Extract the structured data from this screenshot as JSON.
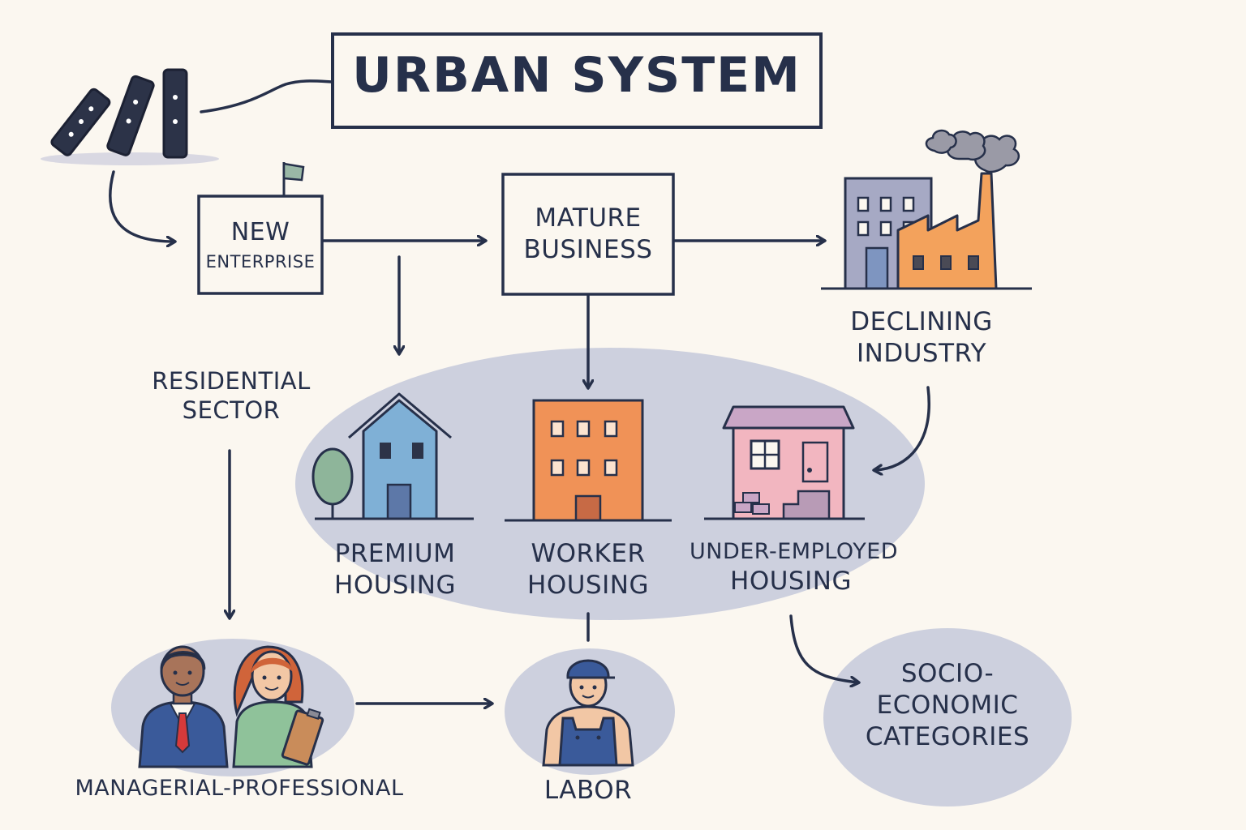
{
  "title": "URBAN SYSTEM",
  "nodes": {
    "new_enterprise": [
      "NEW",
      "ENTERPRISE"
    ],
    "mature_business": [
      "MATURE",
      "BUSINESS"
    ],
    "declining_industry": [
      "DECLINING",
      "INDUSTRY"
    ],
    "residential_sector": [
      "RESIDENTIAL",
      "SECTOR"
    ],
    "premium_housing": [
      "PREMIUM",
      "HOUSING"
    ],
    "worker_housing": [
      "WORKER",
      "HOUSING"
    ],
    "underemployed_housing": [
      "UNDER-EMPLOYED",
      "HOUSING"
    ],
    "managerial_professional": "MANAGERIAL-PROFESSIONAL",
    "labor": "LABOR",
    "socio_economic": [
      "SOCIO-",
      "ECONOMIC",
      "CATEGORIES"
    ]
  },
  "colors": {
    "background": "#fbf7f0",
    "ink": "#26304a",
    "bubble": "#cdd0de",
    "premium_house": "#7fb0d6",
    "worker_block": "#f09257",
    "underemployed_house": "#f2b6c0",
    "factory": "#f3a25c",
    "office": "#a6a9c4"
  },
  "icons": [
    "domino-icon",
    "flag-icon",
    "tree-icon",
    "house-icon",
    "apartment-icon",
    "factory-icon",
    "smoke-icon",
    "manager-icon",
    "professional-icon",
    "worker-icon"
  ]
}
